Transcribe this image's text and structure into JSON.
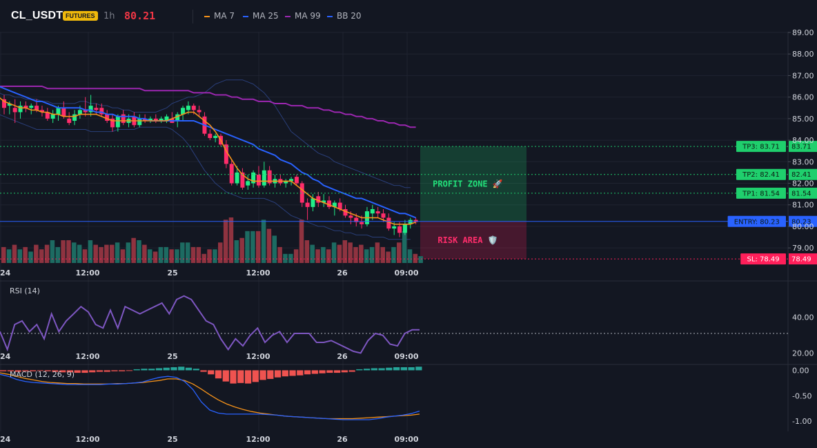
{
  "header": {
    "symbol": "CL_USDT",
    "badge": "FUTURES",
    "timeframe": "1h",
    "price": "80.21",
    "legend": [
      {
        "label": "MA 7",
        "color": "#f7931a"
      },
      {
        "label": "MA 25",
        "color": "#2962ff"
      },
      {
        "label": "MA 99",
        "color": "#9c27b0"
      },
      {
        "label": "BB 20",
        "color": "#2962ff"
      }
    ]
  },
  "colors": {
    "up": "#26a69a",
    "down": "#ef5350",
    "up_bright": "#22ee88",
    "down_bright": "#ff2d6b"
  },
  "levels": [
    {
      "label": "TP3: 83.71",
      "value": 83.71,
      "value_label": "83.71",
      "color": "#1fcf6d"
    },
    {
      "label": "TP2: 82.41",
      "value": 82.41,
      "value_label": "82.41",
      "color": "#1fcf6d"
    },
    {
      "label": "TP1: 81.54",
      "value": 81.54,
      "value_label": "81.54",
      "color": "#1fcf6d"
    },
    {
      "label": "ENTRY: 80.23",
      "value": 80.23,
      "value_label": "80.23",
      "color": "#2962ff"
    },
    {
      "label": "SL: 78.49",
      "value": 78.49,
      "value_label": "78.49",
      "color": "#ff1f5a"
    }
  ],
  "zones": {
    "profit": "PROFIT ZONE 🚀",
    "risk": "RISK AREA 🛡️"
  },
  "time_labels": [
    "24",
    "12:00",
    "25",
    "12:00",
    "26",
    "09:00"
  ],
  "chart_data": [
    {
      "type": "candlestick",
      "ylim": [
        78.3,
        89.0
      ],
      "yticks": [
        "89.00",
        "88.00",
        "87.00",
        "86.00",
        "85.00",
        "84.00",
        "83.00",
        "82.00",
        "81.00",
        "80.00",
        "79.00"
      ],
      "candles": [
        {
          "o": 85.9,
          "h": 86.1,
          "l": 85.2,
          "c": 85.5
        },
        {
          "o": 85.6,
          "h": 85.8,
          "l": 85.2,
          "c": 85.7
        },
        {
          "o": 85.5,
          "h": 85.9,
          "l": 84.8,
          "c": 85.3
        },
        {
          "o": 85.3,
          "h": 85.8,
          "l": 85.0,
          "c": 85.6
        },
        {
          "o": 85.6,
          "h": 85.8,
          "l": 85.3,
          "c": 85.5
        },
        {
          "o": 85.5,
          "h": 85.7,
          "l": 85.2,
          "c": 85.6
        },
        {
          "o": 85.6,
          "h": 85.9,
          "l": 85.3,
          "c": 85.4
        },
        {
          "o": 85.4,
          "h": 85.6,
          "l": 85.1,
          "c": 85.3
        },
        {
          "o": 85.3,
          "h": 85.5,
          "l": 84.9,
          "c": 85.0
        },
        {
          "o": 85.0,
          "h": 85.4,
          "l": 84.8,
          "c": 85.2
        },
        {
          "o": 85.2,
          "h": 85.6,
          "l": 84.9,
          "c": 85.5
        },
        {
          "o": 85.5,
          "h": 85.8,
          "l": 85.0,
          "c": 85.1
        },
        {
          "o": 85.0,
          "h": 85.3,
          "l": 84.7,
          "c": 84.8
        },
        {
          "o": 84.9,
          "h": 85.4,
          "l": 84.7,
          "c": 85.2
        },
        {
          "o": 85.2,
          "h": 85.6,
          "l": 85.0,
          "c": 85.4
        },
        {
          "o": 85.4,
          "h": 86.0,
          "l": 85.1,
          "c": 85.3
        },
        {
          "o": 85.3,
          "h": 86.1,
          "l": 85.1,
          "c": 85.6
        },
        {
          "o": 85.5,
          "h": 85.7,
          "l": 85.2,
          "c": 85.4
        },
        {
          "o": 85.5,
          "h": 85.7,
          "l": 85.1,
          "c": 85.2
        },
        {
          "o": 85.2,
          "h": 85.4,
          "l": 84.8,
          "c": 84.9
        },
        {
          "o": 85.0,
          "h": 85.2,
          "l": 84.4,
          "c": 84.6
        },
        {
          "o": 84.6,
          "h": 85.2,
          "l": 84.4,
          "c": 85.1
        },
        {
          "o": 85.2,
          "h": 85.4,
          "l": 84.7,
          "c": 84.8
        },
        {
          "o": 84.8,
          "h": 85.2,
          "l": 84.6,
          "c": 85.0
        },
        {
          "o": 85.1,
          "h": 85.3,
          "l": 84.6,
          "c": 84.7
        },
        {
          "o": 84.7,
          "h": 85.2,
          "l": 84.6,
          "c": 85.0
        },
        {
          "o": 85.0,
          "h": 85.2,
          "l": 84.8,
          "c": 84.9
        },
        {
          "o": 84.9,
          "h": 85.1,
          "l": 84.8,
          "c": 85.0
        },
        {
          "o": 85.0,
          "h": 85.2,
          "l": 84.8,
          "c": 84.9
        },
        {
          "o": 84.9,
          "h": 85.1,
          "l": 84.8,
          "c": 85.0
        },
        {
          "o": 84.9,
          "h": 85.2,
          "l": 84.8,
          "c": 85.1
        },
        {
          "o": 85.0,
          "h": 85.3,
          "l": 84.8,
          "c": 84.8
        },
        {
          "o": 84.9,
          "h": 85.3,
          "l": 84.6,
          "c": 85.2
        },
        {
          "o": 85.2,
          "h": 85.6,
          "l": 84.9,
          "c": 85.5
        },
        {
          "o": 85.4,
          "h": 85.8,
          "l": 85.2,
          "c": 85.6
        },
        {
          "o": 85.6,
          "h": 85.7,
          "l": 85.2,
          "c": 85.4
        },
        {
          "o": 85.4,
          "h": 85.6,
          "l": 85.1,
          "c": 85.3
        },
        {
          "o": 85.1,
          "h": 85.3,
          "l": 84.2,
          "c": 84.3
        },
        {
          "o": 84.3,
          "h": 84.5,
          "l": 84.0,
          "c": 84.1
        },
        {
          "o": 84.1,
          "h": 84.3,
          "l": 83.9,
          "c": 84.2
        },
        {
          "o": 84.2,
          "h": 84.3,
          "l": 83.7,
          "c": 83.8
        },
        {
          "o": 83.8,
          "h": 84.0,
          "l": 82.7,
          "c": 82.9
        },
        {
          "o": 82.9,
          "h": 83.1,
          "l": 81.9,
          "c": 82.0
        },
        {
          "o": 82.0,
          "h": 82.8,
          "l": 81.9,
          "c": 82.5
        },
        {
          "o": 82.5,
          "h": 82.7,
          "l": 81.7,
          "c": 81.8
        },
        {
          "o": 81.9,
          "h": 82.4,
          "l": 81.7,
          "c": 82.1
        },
        {
          "o": 82.0,
          "h": 82.6,
          "l": 81.8,
          "c": 82.5
        },
        {
          "o": 82.4,
          "h": 82.8,
          "l": 81.8,
          "c": 81.9
        },
        {
          "o": 81.9,
          "h": 83.0,
          "l": 81.8,
          "c": 82.6
        },
        {
          "o": 82.6,
          "h": 82.8,
          "l": 81.9,
          "c": 82.0
        },
        {
          "o": 82.0,
          "h": 82.4,
          "l": 81.8,
          "c": 82.2
        },
        {
          "o": 82.2,
          "h": 82.4,
          "l": 81.9,
          "c": 82.0
        },
        {
          "o": 82.0,
          "h": 82.2,
          "l": 81.8,
          "c": 82.1
        },
        {
          "o": 82.1,
          "h": 82.3,
          "l": 81.9,
          "c": 82.2
        },
        {
          "o": 82.3,
          "h": 82.4,
          "l": 81.9,
          "c": 82.0
        },
        {
          "o": 82.0,
          "h": 82.1,
          "l": 80.9,
          "c": 81.1
        },
        {
          "o": 81.1,
          "h": 81.3,
          "l": 80.3,
          "c": 80.9
        },
        {
          "o": 80.9,
          "h": 81.5,
          "l": 80.7,
          "c": 81.3
        },
        {
          "o": 81.4,
          "h": 81.6,
          "l": 80.9,
          "c": 81.1
        },
        {
          "o": 81.1,
          "h": 81.5,
          "l": 80.9,
          "c": 81.2
        },
        {
          "o": 81.2,
          "h": 81.4,
          "l": 80.8,
          "c": 80.9
        },
        {
          "o": 80.9,
          "h": 81.2,
          "l": 80.5,
          "c": 81.1
        },
        {
          "o": 81.1,
          "h": 81.3,
          "l": 80.7,
          "c": 80.8
        },
        {
          "o": 80.8,
          "h": 81.0,
          "l": 80.4,
          "c": 80.5
        },
        {
          "o": 80.5,
          "h": 80.7,
          "l": 80.1,
          "c": 80.4
        },
        {
          "o": 80.4,
          "h": 80.6,
          "l": 80.0,
          "c": 80.2
        },
        {
          "o": 80.2,
          "h": 80.5,
          "l": 79.9,
          "c": 80.1
        },
        {
          "o": 80.1,
          "h": 80.9,
          "l": 80.0,
          "c": 80.7
        },
        {
          "o": 80.6,
          "h": 81.0,
          "l": 80.3,
          "c": 80.8
        },
        {
          "o": 80.7,
          "h": 80.9,
          "l": 80.4,
          "c": 80.6
        },
        {
          "o": 80.6,
          "h": 80.8,
          "l": 80.2,
          "c": 80.4
        },
        {
          "o": 80.4,
          "h": 80.6,
          "l": 79.8,
          "c": 79.9
        },
        {
          "o": 79.9,
          "h": 80.2,
          "l": 79.6,
          "c": 80.0
        },
        {
          "o": 80.0,
          "h": 80.2,
          "l": 79.5,
          "c": 79.7
        },
        {
          "o": 79.7,
          "h": 80.3,
          "l": 79.6,
          "c": 80.1
        },
        {
          "o": 80.1,
          "h": 80.4,
          "l": 79.9,
          "c": 80.3
        },
        {
          "o": 80.3,
          "h": 80.4,
          "l": 80.1,
          "c": 80.2
        }
      ],
      "volume": [
        0.35,
        0.3,
        0.4,
        0.3,
        0.35,
        0.25,
        0.4,
        0.3,
        0.4,
        0.5,
        0.35,
        0.5,
        0.5,
        0.45,
        0.4,
        0.3,
        0.5,
        0.4,
        0.35,
        0.4,
        0.4,
        0.45,
        0.3,
        0.45,
        0.55,
        0.5,
        0.4,
        0.3,
        0.25,
        0.35,
        0.35,
        0.3,
        0.3,
        0.45,
        0.45,
        0.35,
        0.35,
        0.2,
        0.3,
        0.3,
        0.45,
        0.95,
        1.0,
        0.5,
        0.55,
        0.7,
        0.7,
        0.7,
        0.95,
        0.75,
        0.6,
        0.35,
        0.2,
        0.2,
        0.3,
        0.95,
        0.5,
        0.4,
        0.3,
        0.35,
        0.3,
        0.45,
        0.4,
        0.5,
        0.45,
        0.35,
        0.4,
        0.3,
        0.35,
        0.45,
        0.35,
        0.25,
        0.35,
        0.45,
        0.7,
        0.3,
        0.2,
        0.15
      ],
      "ma7": [
        86.0,
        85.8,
        85.7,
        85.6,
        85.5,
        85.5,
        85.4,
        85.4,
        85.3,
        85.3,
        85.2,
        85.2,
        85.1,
        85.1,
        85.1,
        85.2,
        85.2,
        85.2,
        85.2,
        85.1,
        85.0,
        84.9,
        84.9,
        84.9,
        84.9,
        84.9,
        84.9,
        84.9,
        84.9,
        84.9,
        84.9,
        84.9,
        85.0,
        85.1,
        85.2,
        85.3,
        85.3,
        85.1,
        84.9,
        84.7,
        84.4,
        84.0,
        83.5,
        83.1,
        82.7,
        82.4,
        82.2,
        82.1,
        82.1,
        82.1,
        82.1,
        82.1,
        82.1,
        82.1,
        82.1,
        81.9,
        81.7,
        81.5,
        81.3,
        81.2,
        81.1,
        81.0,
        80.9,
        80.8,
        80.7,
        80.6,
        80.5,
        80.4,
        80.4,
        80.4,
        80.4,
        80.3,
        80.2,
        80.1,
        80.1,
        80.1,
        80.1,
        80.2
      ],
      "ma25": [
        86.5,
        86.4,
        86.3,
        86.2,
        86.1,
        86.0,
        85.9,
        85.8,
        85.8,
        85.7,
        85.6,
        85.5,
        85.5,
        85.5,
        85.5,
        85.5,
        85.4,
        85.4,
        85.3,
        85.3,
        85.2,
        85.2,
        85.1,
        85.1,
        85.1,
        85.1,
        85.0,
        85.0,
        84.9,
        84.9,
        84.9,
        84.9,
        84.9,
        84.9,
        84.9,
        84.9,
        84.9,
        84.8,
        84.7,
        84.6,
        84.5,
        84.4,
        84.3,
        84.2,
        84.1,
        84.0,
        83.9,
        83.8,
        83.6,
        83.5,
        83.4,
        83.3,
        83.1,
        83.0,
        82.9,
        82.7,
        82.5,
        82.4,
        82.2,
        82.1,
        81.9,
        81.8,
        81.7,
        81.6,
        81.5,
        81.4,
        81.3,
        81.3,
        81.2,
        81.1,
        81.0,
        80.9,
        80.8,
        80.7,
        80.6,
        80.6,
        80.5,
        80.4
      ],
      "ma99": [
        86.5,
        86.5,
        86.5,
        86.5,
        86.5,
        86.5,
        86.5,
        86.5,
        86.5,
        86.4,
        86.4,
        86.4,
        86.4,
        86.4,
        86.4,
        86.4,
        86.4,
        86.4,
        86.4,
        86.4,
        86.4,
        86.4,
        86.4,
        86.4,
        86.4,
        86.4,
        86.4,
        86.3,
        86.3,
        86.3,
        86.3,
        86.3,
        86.3,
        86.3,
        86.3,
        86.3,
        86.2,
        86.2,
        86.2,
        86.2,
        86.1,
        86.1,
        86.1,
        86.0,
        86.0,
        85.9,
        85.9,
        85.9,
        85.8,
        85.8,
        85.8,
        85.7,
        85.7,
        85.7,
        85.6,
        85.6,
        85.6,
        85.5,
        85.5,
        85.5,
        85.4,
        85.4,
        85.3,
        85.3,
        85.2,
        85.2,
        85.1,
        85.1,
        85.0,
        85.0,
        84.9,
        84.9,
        84.8,
        84.8,
        84.7,
        84.7,
        84.6,
        84.6
      ],
      "bb_upper": [
        86.3,
        86.2,
        86.1,
        86.1,
        86.0,
        86.0,
        85.9,
        85.9,
        85.9,
        85.8,
        85.8,
        85.7,
        85.7,
        85.7,
        85.7,
        85.7,
        85.8,
        85.8,
        85.7,
        85.7,
        85.6,
        85.6,
        85.5,
        85.5,
        85.4,
        85.4,
        85.3,
        85.3,
        85.3,
        85.3,
        85.3,
        85.4,
        85.5,
        85.7,
        85.8,
        85.9,
        86.0,
        86.0,
        86.1,
        86.2,
        86.4,
        86.6,
        86.7,
        86.8,
        86.8,
        86.8,
        86.8,
        86.7,
        86.6,
        86.4,
        86.2,
        85.9,
        85.6,
        85.2,
        84.8,
        84.4,
        84.2,
        84.0,
        83.8,
        83.6,
        83.4,
        83.3,
        83.2,
        83.0,
        82.9,
        82.8,
        82.7,
        82.6,
        82.5,
        82.4,
        82.3,
        82.2,
        82.1,
        82.0,
        81.9,
        81.9,
        81.8,
        81.8
      ],
      "bb_lower": [
        85.3,
        85.2,
        85.1,
        85.0,
        84.9,
        84.8,
        84.7,
        84.6,
        84.5,
        84.5,
        84.5,
        84.5,
        84.5,
        84.5,
        84.5,
        84.5,
        84.5,
        84.5,
        84.4,
        84.4,
        84.4,
        84.4,
        84.4,
        84.5,
        84.5,
        84.5,
        84.5,
        84.6,
        84.6,
        84.6,
        84.6,
        84.6,
        84.6,
        84.5,
        84.3,
        84.1,
        83.8,
        83.4,
        83.0,
        82.6,
        82.3,
        82.0,
        81.8,
        81.6,
        81.5,
        81.4,
        81.3,
        81.3,
        81.3,
        81.3,
        81.3,
        81.2,
        81.1,
        80.9,
        80.7,
        80.5,
        80.4,
        80.3,
        80.2,
        80.1,
        80.0,
        80.0,
        79.9,
        79.8,
        79.8,
        79.7,
        79.7,
        79.6,
        79.6,
        79.6,
        79.5,
        79.5,
        79.5,
        79.4,
        79.4,
        79.4,
        79.4,
        79.4
      ]
    },
    {
      "type": "line",
      "title": "RSI (14)",
      "ylim": [
        14,
        60
      ],
      "yticks": [
        "40.00",
        "20.00"
      ],
      "values": [
        32,
        22,
        36,
        38,
        32,
        36,
        28,
        42,
        32,
        38,
        42,
        46,
        43,
        36,
        34,
        44,
        34,
        46,
        44,
        42,
        44,
        46,
        48,
        42,
        50,
        52,
        50,
        44,
        38,
        36,
        28,
        22,
        28,
        24,
        30,
        34,
        26,
        30,
        32,
        26,
        31,
        31,
        31,
        26,
        26,
        27,
        25,
        23,
        21,
        20,
        27,
        31,
        30,
        25,
        24,
        31,
        33,
        33
      ],
      "ref_line": 31
    },
    {
      "type": "bar",
      "title": "MACD (12, 26, 9)",
      "ylim": [
        -1.2,
        0.1
      ],
      "yticks": [
        "0.00",
        "-0.50",
        "-1.00"
      ],
      "histogram": [
        -0.02,
        -0.02,
        -0.03,
        -0.02,
        -0.02,
        -0.01,
        -0.02,
        -0.03,
        -0.04,
        -0.04,
        -0.05,
        -0.05,
        -0.04,
        -0.03,
        -0.03,
        -0.02,
        -0.02,
        -0.01,
        0.02,
        0.03,
        0.03,
        0.04,
        0.05,
        0.06,
        0.07,
        0.05,
        0.03,
        -0.03,
        -0.08,
        -0.16,
        -0.22,
        -0.26,
        -0.25,
        -0.26,
        -0.23,
        -0.19,
        -0.17,
        -0.14,
        -0.12,
        -0.11,
        -0.1,
        -0.08,
        -0.07,
        -0.06,
        -0.05,
        -0.05,
        -0.04,
        -0.03,
        0.02,
        0.03,
        0.04,
        0.04,
        0.05,
        0.06,
        0.06,
        0.06,
        0.07
      ],
      "macd": [
        -0.08,
        -0.12,
        -0.18,
        -0.22,
        -0.24,
        -0.25,
        -0.26,
        -0.27,
        -0.28,
        -0.28,
        -0.28,
        -0.28,
        -0.28,
        -0.27,
        -0.27,
        -0.26,
        -0.25,
        -0.23,
        -0.18,
        -0.14,
        -0.12,
        -0.14,
        -0.22,
        -0.38,
        -0.62,
        -0.78,
        -0.84,
        -0.86,
        -0.86,
        -0.86,
        -0.86,
        -0.86,
        -0.87,
        -0.88,
        -0.9,
        -0.91,
        -0.92,
        -0.93,
        -0.94,
        -0.95,
        -0.96,
        -0.97,
        -0.97,
        -0.97,
        -0.97,
        -0.95,
        -0.92,
        -0.9,
        -0.88,
        -0.85,
        -0.8
      ],
      "signal": [
        -0.05,
        -0.08,
        -0.12,
        -0.16,
        -0.19,
        -0.22,
        -0.24,
        -0.25,
        -0.26,
        -0.26,
        -0.27,
        -0.27,
        -0.27,
        -0.27,
        -0.26,
        -0.26,
        -0.25,
        -0.24,
        -0.22,
        -0.2,
        -0.17,
        -0.17,
        -0.2,
        -0.27,
        -0.37,
        -0.48,
        -0.58,
        -0.66,
        -0.72,
        -0.77,
        -0.81,
        -0.84,
        -0.86,
        -0.88,
        -0.9,
        -0.91,
        -0.92,
        -0.93,
        -0.94,
        -0.95,
        -0.95,
        -0.95,
        -0.95,
        -0.94,
        -0.93,
        -0.92,
        -0.91,
        -0.9,
        -0.89,
        -0.88,
        -0.86
      ]
    }
  ]
}
